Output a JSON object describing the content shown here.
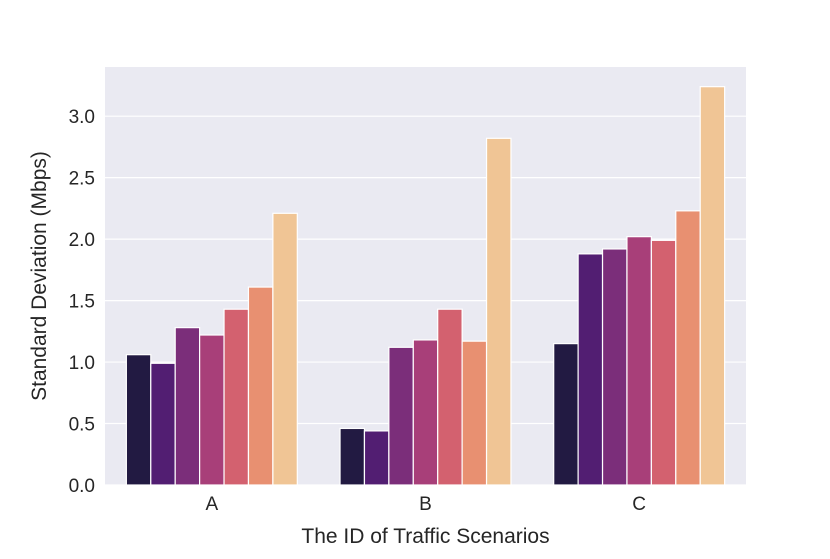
{
  "chart_data": {
    "type": "bar",
    "title": "",
    "xlabel": "The ID of Traffic Scenarios",
    "ylabel": "Standard Deviation (Mbps)",
    "categories": [
      "A",
      "B",
      "C"
    ],
    "ylim": [
      0,
      3.4
    ],
    "yticks": [
      0.0,
      0.5,
      1.0,
      1.5,
      2.0,
      2.5,
      3.0
    ],
    "ytick_labels": [
      "0.0",
      "0.5",
      "1.0",
      "1.5",
      "2.0",
      "2.5",
      "3.0"
    ],
    "grid": true,
    "legend": "none",
    "series": [
      {
        "name": "series-1",
        "color": "#221a42",
        "values": [
          1.06,
          0.46,
          1.15
        ]
      },
      {
        "name": "series-2",
        "color": "#521e72",
        "values": [
          0.99,
          0.44,
          1.88
        ]
      },
      {
        "name": "series-3",
        "color": "#7b2e7a",
        "values": [
          1.28,
          1.12,
          1.92
        ]
      },
      {
        "name": "series-4",
        "color": "#a83f79",
        "values": [
          1.22,
          1.18,
          2.02
        ]
      },
      {
        "name": "series-5",
        "color": "#d3616f",
        "values": [
          1.43,
          1.43,
          1.99
        ]
      },
      {
        "name": "series-6",
        "color": "#e89071",
        "values": [
          1.61,
          1.17,
          2.23
        ]
      },
      {
        "name": "series-7",
        "color": "#f0c595",
        "values": [
          2.21,
          2.82,
          3.24
        ]
      }
    ],
    "plot_background": "#eaeaf2",
    "grid_color": "#ffffff"
  }
}
